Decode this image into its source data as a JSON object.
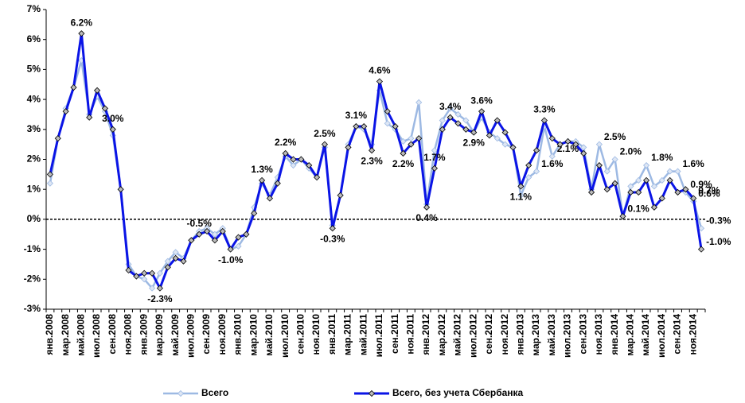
{
  "chart_data": {
    "type": "line",
    "categories": [
      "янв.2008",
      null,
      "мар.2008",
      null,
      "май.2008",
      null,
      "июл.2008",
      null,
      "сен.2008",
      null,
      "ноя.2008",
      null,
      "янв.2009",
      null,
      "мар.2009",
      null,
      "май.2009",
      null,
      "июл.2009",
      null,
      "сен.2009",
      null,
      "ноя.2009",
      null,
      "янв.2010",
      null,
      "мар.2010",
      null,
      "май.2010",
      null,
      "июл.2010",
      null,
      "сен.2010",
      null,
      "ноя.2010",
      null,
      "янв.2011",
      null,
      "мар.2011",
      null,
      "май.2011",
      null,
      "июл.2011",
      null,
      "сен.2011",
      null,
      "ноя.2011",
      null,
      "янв.2012",
      null,
      "мар.2012",
      null,
      "май.2012",
      null,
      "июл.2012",
      null,
      "сен.2012",
      null,
      "ноя.2012",
      null,
      "янв.2013",
      null,
      "мар.2013",
      null,
      "май.2013",
      null,
      "июл.2013",
      null,
      "сен.2013",
      null,
      "ноя.2013",
      null,
      "янв.2014",
      null,
      "мар.2014",
      null,
      "май.2014",
      null,
      "июл.2014",
      null,
      "сен.2014",
      null,
      "ноя.2014",
      null
    ],
    "series": [
      {
        "name": "Всего",
        "color": "#9db9e3",
        "values": [
          1.2,
          2.7,
          3.7,
          4.4,
          5.3,
          3.5,
          4.1,
          3.6,
          2.8,
          1.0,
          -1.5,
          -1.9,
          -2.0,
          -2.3,
          -1.8,
          -1.4,
          -1.1,
          -1.3,
          -0.7,
          -0.4,
          -0.3,
          -0.5,
          -0.3,
          -1.0,
          -0.9,
          -0.5,
          0.4,
          1.2,
          0.8,
          1.4,
          2.1,
          1.8,
          2.0,
          1.7,
          1.4,
          2.4,
          -0.2,
          0.8,
          2.5,
          3.1,
          3.0,
          2.5,
          4.3,
          3.2,
          3.0,
          2.6,
          2.7,
          3.9,
          0.5,
          2.3,
          3.3,
          3.7,
          3.5,
          3.3,
          2.9,
          3.4,
          2.9,
          2.7,
          2.5,
          2.4,
          0.8,
          1.4,
          1.6,
          3.1,
          2.1,
          2.5,
          2.6,
          2.6,
          2.4,
          1.0,
          2.5,
          1.6,
          2.0,
          0.1,
          1.1,
          1.3,
          1.8,
          1.1,
          1.3,
          1.6,
          1.6,
          0.9,
          0.6,
          -0.3
        ],
        "value_labels": [
          null,
          null,
          null,
          null,
          null,
          null,
          null,
          null,
          null,
          null,
          null,
          null,
          null,
          null,
          null,
          null,
          null,
          null,
          null,
          null,
          null,
          null,
          null,
          null,
          null,
          null,
          null,
          null,
          null,
          null,
          null,
          null,
          null,
          null,
          null,
          null,
          null,
          null,
          null,
          null,
          null,
          null,
          null,
          null,
          null,
          null,
          null,
          null,
          null,
          null,
          null,
          null,
          null,
          null,
          null,
          null,
          null,
          null,
          null,
          null,
          null,
          null,
          "1.6%",
          null,
          "2.1%",
          null,
          null,
          null,
          null,
          null,
          "2.5%",
          null,
          "2.0%",
          "0.1%",
          null,
          null,
          "1.8%",
          null,
          null,
          null,
          "1.6%",
          "0.9%",
          "0.6%",
          "-0.3%"
        ]
      },
      {
        "name": "Всего, без учета Сбербанка",
        "color": "#0a14e6",
        "values": [
          1.5,
          2.7,
          3.6,
          4.4,
          6.2,
          3.4,
          4.3,
          3.7,
          3.0,
          1.0,
          -1.7,
          -1.9,
          -1.8,
          -1.8,
          -2.3,
          -1.6,
          -1.3,
          -1.4,
          -0.7,
          -0.5,
          -0.4,
          -0.7,
          -0.4,
          -1.0,
          -0.6,
          -0.5,
          0.2,
          1.3,
          0.7,
          1.2,
          2.2,
          2.0,
          2.0,
          1.8,
          1.4,
          2.5,
          -0.3,
          0.8,
          2.4,
          3.1,
          3.1,
          2.3,
          4.6,
          3.6,
          3.1,
          2.2,
          2.5,
          2.7,
          0.4,
          1.7,
          3.0,
          3.4,
          3.2,
          3.0,
          2.9,
          3.6,
          2.8,
          3.3,
          2.9,
          2.4,
          1.1,
          1.8,
          2.3,
          3.3,
          2.7,
          2.5,
          2.6,
          2.5,
          2.2,
          0.9,
          1.8,
          1.0,
          1.2,
          0.1,
          0.9,
          0.9,
          1.3,
          0.4,
          0.7,
          1.3,
          0.9,
          1.0,
          0.7,
          -1.0
        ],
        "value_labels": [
          null,
          null,
          null,
          null,
          "6.2%",
          null,
          null,
          null,
          "3.0%",
          null,
          null,
          null,
          null,
          null,
          "-2.3%",
          null,
          null,
          null,
          null,
          "-0.5%",
          null,
          null,
          null,
          "-1.0%",
          null,
          null,
          null,
          "1.3%",
          null,
          null,
          "2.2%",
          null,
          null,
          null,
          null,
          "2.5%",
          "-0.3%",
          null,
          null,
          "3.1%",
          null,
          "2.3%",
          "4.6%",
          null,
          null,
          "2.2%",
          null,
          null,
          "0.4%",
          "1.7%",
          null,
          "3.4%",
          null,
          null,
          "2.9%",
          "3.6%",
          null,
          null,
          null,
          null,
          "1.1%",
          null,
          null,
          "3.3%",
          null,
          null,
          null,
          null,
          null,
          null,
          null,
          null,
          null,
          null,
          null,
          null,
          null,
          null,
          null,
          null,
          null,
          null,
          "0.7%",
          "-1.0%"
        ]
      }
    ],
    "ylim": [
      -3,
      7
    ],
    "yticks": [
      {
        "value": -3,
        "label": "-3%"
      },
      {
        "value": -2,
        "label": "-2%"
      },
      {
        "value": -1,
        "label": "-1%"
      },
      {
        "value": 0,
        "label": "0%"
      },
      {
        "value": 1,
        "label": "1%"
      },
      {
        "value": 2,
        "label": "2%"
      },
      {
        "value": 3,
        "label": "3%"
      },
      {
        "value": 4,
        "label": "4%"
      },
      {
        "value": 5,
        "label": "5%"
      },
      {
        "value": 6,
        "label": "6%"
      },
      {
        "value": 7,
        "label": "7%"
      }
    ]
  }
}
